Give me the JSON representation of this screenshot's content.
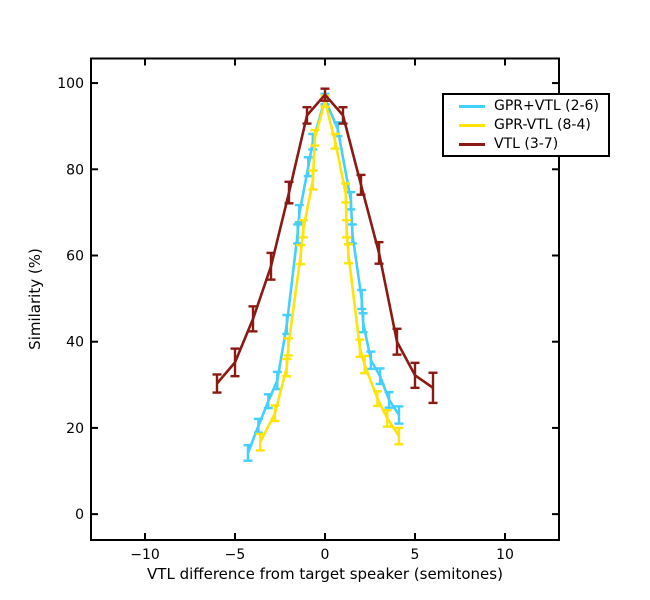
{
  "chart_data": {
    "type": "line",
    "title": "",
    "xlabel": "VTL difference from target speaker (semitones)",
    "ylabel": "Similarity (%)",
    "xlim": [
      -13,
      13
    ],
    "ylim": [
      -6,
      105.7
    ],
    "x_ticks": [
      -10,
      -5,
      0,
      5,
      10
    ],
    "y_ticks": [
      0,
      20,
      40,
      60,
      80,
      100
    ],
    "grid": false,
    "error_bars": true,
    "legend_position": "upper right",
    "axis_color": "#000000",
    "background_color": "#ffffff",
    "series": [
      {
        "name": "GPR+VTL (2-6)",
        "color": "#44d0ff",
        "points": [
          [
            -4.28,
            14.2,
            1.8
          ],
          [
            -3.7,
            20.5,
            1.6
          ],
          [
            -3.15,
            26.2,
            1.6
          ],
          [
            -2.65,
            31.0,
            2.0
          ],
          [
            -2.12,
            44.0,
            2.2
          ],
          [
            -1.52,
            65.0,
            2.2
          ],
          [
            -1.43,
            69.7,
            2.0
          ],
          [
            -0.93,
            80.6,
            2.2
          ],
          [
            -0.68,
            86.4,
            1.8
          ],
          [
            0.0,
            96.3,
            1.2
          ],
          [
            0.71,
            89.3,
            1.6
          ],
          [
            1.44,
            72.7,
            2.0
          ],
          [
            1.52,
            65.0,
            2.2
          ],
          [
            2.04,
            49.8,
            2.2
          ],
          [
            2.12,
            44.4,
            2.2
          ],
          [
            2.55,
            35.7,
            2.0
          ],
          [
            3.06,
            32.0,
            1.8
          ],
          [
            3.56,
            26.5,
            1.8
          ],
          [
            4.11,
            23.0,
            2.0
          ]
        ]
      },
      {
        "name": "GPR-VTL (8-4)",
        "color": "#ffe30a",
        "points": [
          [
            -3.6,
            16.7,
            1.9
          ],
          [
            -2.78,
            23.4,
            1.8
          ],
          [
            -2.13,
            34.0,
            2.0
          ],
          [
            -2.04,
            38.8,
            2.0
          ],
          [
            -1.35,
            60.2,
            2.2
          ],
          [
            -1.2,
            66.2,
            2.0
          ],
          [
            -0.67,
            77.5,
            2.2
          ],
          [
            -0.56,
            87.3,
            1.8
          ],
          [
            0.0,
            95.8,
            1.3
          ],
          [
            0.56,
            86.5,
            1.7
          ],
          [
            1.15,
            74.5,
            2.2
          ],
          [
            1.2,
            66.2,
            2.0
          ],
          [
            1.3,
            60.4,
            2.2
          ],
          [
            1.94,
            38.5,
            2.0
          ],
          [
            2.2,
            34.7,
            2.0
          ],
          [
            2.91,
            26.8,
            1.7
          ],
          [
            3.46,
            22.2,
            1.9
          ],
          [
            4.11,
            18.1,
            1.9
          ]
        ]
      },
      {
        "name": "VTL (3-7)",
        "color": "#8c1a14",
        "points": [
          [
            -6.0,
            30.3,
            2.1
          ],
          [
            -5.0,
            35.2,
            3.2
          ],
          [
            -4.0,
            45.3,
            2.9
          ],
          [
            -3.0,
            57.5,
            3.1
          ],
          [
            -2.0,
            74.6,
            2.5
          ],
          [
            -1.0,
            92.5,
            1.9
          ],
          [
            0.0,
            97.3,
            1.4
          ],
          [
            1.0,
            92.5,
            1.9
          ],
          [
            2.0,
            76.4,
            2.3
          ],
          [
            3.0,
            60.6,
            2.5
          ],
          [
            4.0,
            40.0,
            3.0
          ],
          [
            5.0,
            32.2,
            2.9
          ],
          [
            6.0,
            29.3,
            3.5
          ]
        ]
      }
    ]
  }
}
